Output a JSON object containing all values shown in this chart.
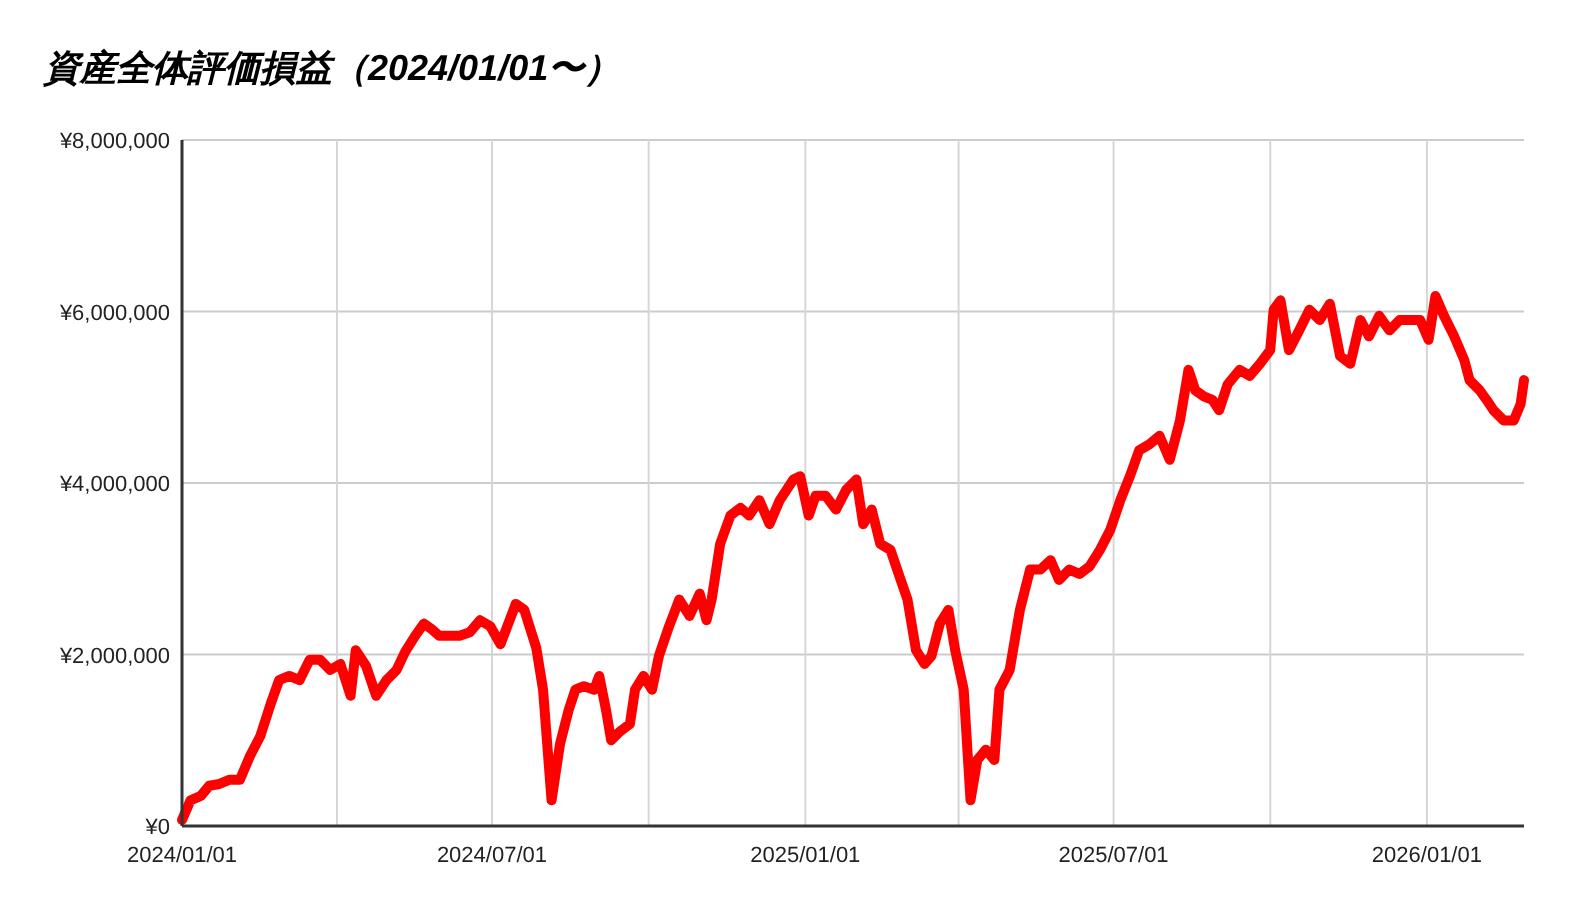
{
  "chart_data": {
    "type": "line",
    "title": "資産全体評価損益（2024/01/01〜）",
    "x": [
      "2024-01-01",
      "2024-01-06",
      "2024-01-12",
      "2024-01-17",
      "2024-01-23",
      "2024-01-29",
      "2024-02-04",
      "2024-02-10",
      "2024-02-16",
      "2024-02-22",
      "2024-02-27",
      "2024-03-04",
      "2024-03-10",
      "2024-03-16",
      "2024-03-22",
      "2024-03-28",
      "2024-04-03",
      "2024-04-09",
      "2024-04-12",
      "2024-04-18",
      "2024-04-24",
      "2024-04-30",
      "2024-05-06",
      "2024-05-11",
      "2024-05-17",
      "2024-05-22",
      "2024-05-27",
      "2024-05-31",
      "2024-06-06",
      "2024-06-12",
      "2024-06-18",
      "2024-06-24",
      "2024-06-30",
      "2024-07-06",
      "2024-07-15",
      "2024-07-20",
      "2024-07-27",
      "2024-07-31",
      "2024-08-05",
      "2024-08-10",
      "2024-08-15",
      "2024-08-19",
      "2024-08-24",
      "2024-08-30",
      "2024-09-02",
      "2024-09-06",
      "2024-09-09",
      "2024-09-14",
      "2024-09-20",
      "2024-09-23",
      "2024-09-28",
      "2024-10-03",
      "2024-10-07",
      "2024-10-13",
      "2024-10-19",
      "2024-10-25",
      "2024-10-31",
      "2024-11-04",
      "2024-11-07",
      "2024-11-12",
      "2024-11-18",
      "2024-11-24",
      "2024-11-29",
      "2024-12-05",
      "2024-12-11",
      "2024-12-17",
      "2024-12-25",
      "2024-12-29",
      "2025-01-03",
      "2025-01-07",
      "2025-01-13",
      "2025-01-19",
      "2025-01-25",
      "2025-01-31",
      "2025-02-04",
      "2025-02-09",
      "2025-02-14",
      "2025-02-20",
      "2025-02-26",
      "2025-03-02",
      "2025-03-07",
      "2025-03-12",
      "2025-03-16",
      "2025-03-21",
      "2025-03-26",
      "2025-03-30",
      "2025-04-04",
      "2025-04-08",
      "2025-04-12",
      "2025-04-17",
      "2025-04-22",
      "2025-04-25",
      "2025-05-01",
      "2025-05-07",
      "2025-05-13",
      "2025-05-19",
      "2025-05-25",
      "2025-05-30",
      "2025-06-05",
      "2025-06-11",
      "2025-06-17",
      "2025-06-23",
      "2025-06-29",
      "2025-07-05",
      "2025-07-11",
      "2025-07-16",
      "2025-07-22",
      "2025-07-28",
      "2025-08-03",
      "2025-08-09",
      "2025-08-14",
      "2025-08-18",
      "2025-08-23",
      "2025-08-28",
      "2025-09-01",
      "2025-09-06",
      "2025-09-13",
      "2025-09-19",
      "2025-09-25",
      "2025-10-01",
      "2025-10-03",
      "2025-10-07",
      "2025-10-12",
      "2025-10-18",
      "2025-10-24",
      "2025-10-30",
      "2025-11-05",
      "2025-11-11",
      "2025-11-17",
      "2025-11-23",
      "2025-11-28",
      "2025-12-04",
      "2025-12-10",
      "2025-12-16",
      "2025-12-22",
      "2025-12-28",
      "2026-01-02",
      "2026-01-06",
      "2026-01-11",
      "2026-01-17",
      "2026-01-23",
      "2026-01-26",
      "2026-02-01",
      "2026-02-05",
      "2026-02-09",
      "2026-02-15",
      "2026-02-21",
      "2026-02-25",
      "2026-02-27"
    ],
    "series": [
      {
        "color": "#ff0000",
        "values": [
          70000,
          300000,
          350000,
          470000,
          490000,
          540000,
          540000,
          820000,
          1050000,
          1420000,
          1700000,
          1750000,
          1700000,
          1940000,
          1940000,
          1820000,
          1890000,
          1520000,
          2050000,
          1870000,
          1520000,
          1700000,
          1820000,
          2030000,
          2220000,
          2360000,
          2290000,
          2220000,
          2220000,
          2220000,
          2260000,
          2400000,
          2330000,
          2120000,
          2590000,
          2520000,
          2080000,
          1590000,
          300000,
          960000,
          1350000,
          1590000,
          1630000,
          1590000,
          1750000,
          1350000,
          1000000,
          1100000,
          1190000,
          1590000,
          1750000,
          1590000,
          1980000,
          2330000,
          2640000,
          2450000,
          2710000,
          2400000,
          2640000,
          3290000,
          3620000,
          3710000,
          3620000,
          3800000,
          3520000,
          3800000,
          4040000,
          4080000,
          3620000,
          3850000,
          3850000,
          3690000,
          3920000,
          4040000,
          3520000,
          3690000,
          3290000,
          3220000,
          2870000,
          2640000,
          2050000,
          1890000,
          1980000,
          2360000,
          2520000,
          2050000,
          1590000,
          300000,
          770000,
          890000,
          770000,
          1590000,
          1820000,
          2520000,
          2990000,
          2990000,
          3100000,
          2870000,
          2990000,
          2940000,
          3030000,
          3220000,
          3450000,
          3800000,
          4100000,
          4380000,
          4450000,
          4550000,
          4270000,
          4730000,
          5320000,
          5080000,
          5010000,
          4970000,
          4850000,
          5150000,
          5320000,
          5250000,
          5390000,
          5550000,
          6020000,
          6130000,
          5550000,
          5780000,
          6020000,
          5900000,
          6090000,
          5480000,
          5390000,
          5900000,
          5710000,
          5950000,
          5780000,
          5900000,
          5900000,
          5900000,
          5670000,
          6180000,
          5950000,
          5710000,
          5430000,
          5200000,
          5080000,
          4970000,
          4850000,
          4730000,
          4730000,
          4920000,
          5200000
        ]
      }
    ],
    "xlim": [
      "2024-01-01",
      "2026-02-27"
    ],
    "xticks": [
      {
        "value": "2024-01-01",
        "label": "2024/01/01"
      },
      {
        "value": "2024-04-01",
        "label": null
      },
      {
        "value": "2024-07-01",
        "label": "2024/07/01"
      },
      {
        "value": "2024-10-01",
        "label": null
      },
      {
        "value": "2025-01-01",
        "label": "2025/01/01"
      },
      {
        "value": "2025-04-01",
        "label": null
      },
      {
        "value": "2025-07-01",
        "label": "2025/07/01"
      },
      {
        "value": "2025-10-01",
        "label": null
      },
      {
        "value": "2026-01-01",
        "label": "2026/01/01"
      }
    ],
    "ylim": [
      0,
      8000000
    ],
    "yticks": [
      {
        "value": 0,
        "label": "¥0"
      },
      {
        "value": 2000000,
        "label": "¥2,000,000"
      },
      {
        "value": 4000000,
        "label": "¥4,000,000"
      },
      {
        "value": 6000000,
        "label": "¥6,000,000"
      },
      {
        "value": 8000000,
        "label": "¥8,000,000"
      }
    ],
    "grid": true,
    "marker": "none",
    "line_style": "solid"
  }
}
